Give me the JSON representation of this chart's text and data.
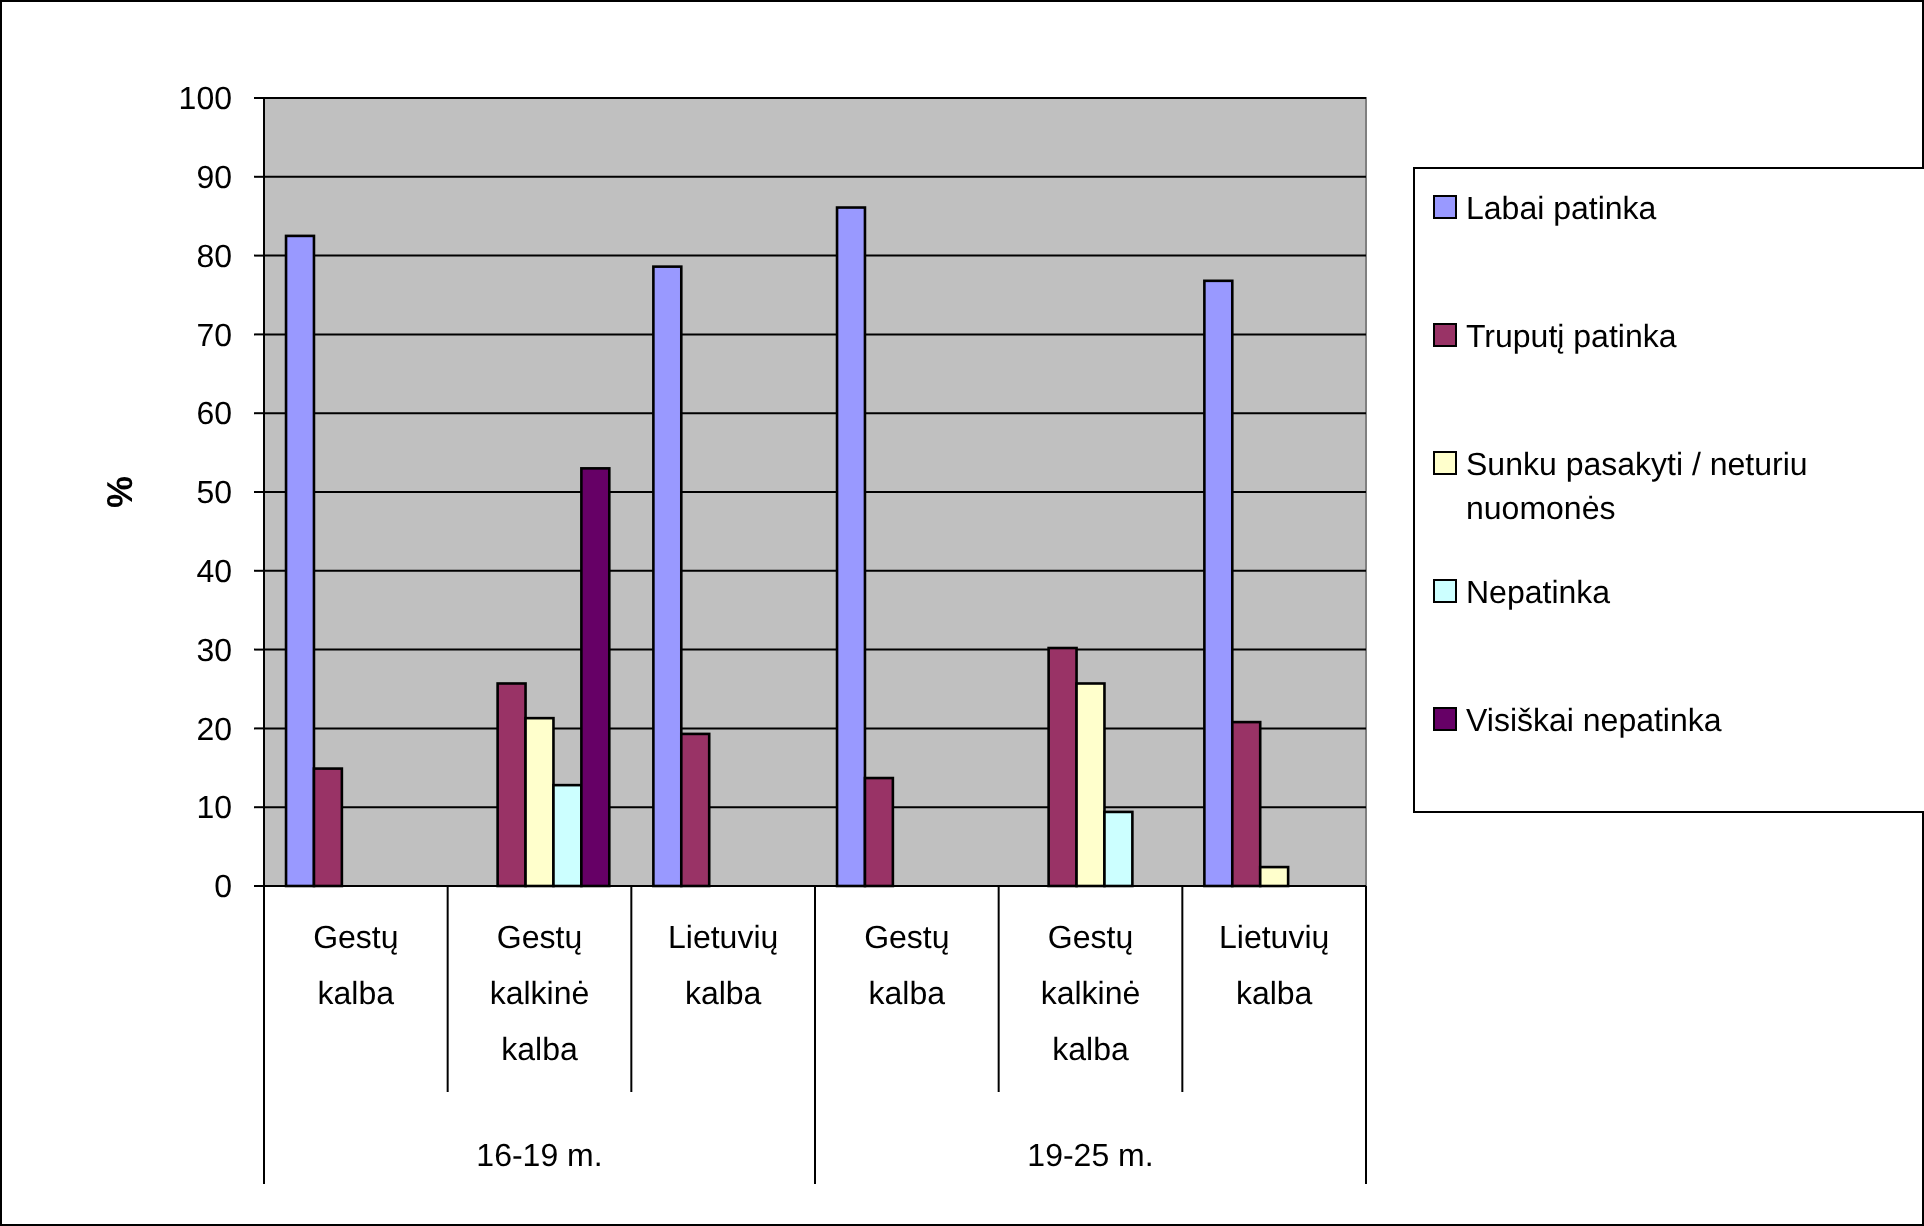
{
  "chart_data": {
    "type": "bar",
    "ylabel": "%",
    "categories": [
      "Gestų kalba",
      "Gestų kalkinė kalba",
      "Lietuvių kalba",
      "Gestų kalba",
      "Gestų kalkinė kalba",
      "Lietuvių kalba"
    ],
    "annotations": [
      "16-19 m.",
      "19-25 m."
    ],
    "series": [
      {
        "name": "Labai patinka",
        "color": "#9999ff",
        "values": [
          82.5,
          null,
          78.6,
          86.1,
          null,
          76.8
        ]
      },
      {
        "name": "Truputį patinka",
        "color": "#993366",
        "values": [
          14.9,
          25.7,
          19.3,
          13.7,
          30.2,
          20.8
        ]
      },
      {
        "name": "Sunku pasakyti / neturiu nuomonės",
        "color": "#ffffcc",
        "values": [
          null,
          21.3,
          null,
          null,
          25.7,
          2.4
        ]
      },
      {
        "name": "Nepatinka",
        "color": "#ccffff",
        "values": [
          null,
          12.8,
          null,
          null,
          9.4,
          null
        ]
      },
      {
        "name": "Visiškai nepatinka",
        "color": "#660066",
        "values": [
          null,
          53.0,
          null,
          null,
          null,
          null
        ]
      }
    ],
    "ylim": [
      0,
      100
    ],
    "yticks": [
      0,
      10,
      20,
      30,
      40,
      50,
      60,
      70,
      80,
      90,
      100
    ],
    "grid": "y",
    "legend": "right"
  }
}
